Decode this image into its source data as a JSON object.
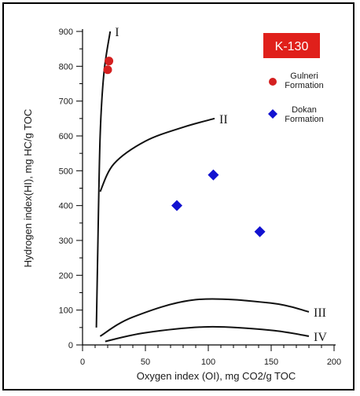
{
  "chart_data": {
    "type": "scatter",
    "title": "",
    "badge": {
      "label": "K-130",
      "color": "#e0201b"
    },
    "xlabel": "Oxygen index (OI), mg CO2/g TOC",
    "ylabel": "Hydrogen index(HI), mg HC/g TOC",
    "xlim": [
      0,
      200
    ],
    "ylim": [
      0,
      900
    ],
    "x_ticks": [
      0,
      50,
      100,
      150,
      200
    ],
    "y_ticks": [
      0,
      100,
      200,
      300,
      400,
      500,
      600,
      700,
      800,
      900
    ],
    "grid": false,
    "legend_position": "top-right",
    "series": [
      {
        "name": "Gulneri Formation",
        "name_lines": [
          "Gulneri",
          "Formation"
        ],
        "marker": "circle",
        "color": "#d42020",
        "points": [
          [
            21,
            815
          ],
          [
            20,
            790
          ]
        ]
      },
      {
        "name": "Dokan Formation",
        "name_lines": [
          "Dokan",
          "Formation"
        ],
        "marker": "diamond",
        "color": "#1212d0",
        "points": [
          [
            104,
            488
          ],
          [
            75,
            400
          ],
          [
            141,
            325
          ]
        ]
      }
    ],
    "kerogen_curves": [
      {
        "label": "I",
        "points": [
          [
            11,
            50
          ],
          [
            12,
            250
          ],
          [
            14,
            600
          ],
          [
            17,
            780
          ],
          [
            22,
            900
          ]
        ]
      },
      {
        "label": "II",
        "points": [
          [
            14,
            440
          ],
          [
            25,
            520
          ],
          [
            50,
            585
          ],
          [
            80,
            625
          ],
          [
            105,
            650
          ]
        ]
      },
      {
        "label": "III",
        "points": [
          [
            14,
            25
          ],
          [
            40,
            80
          ],
          [
            90,
            130
          ],
          [
            150,
            120
          ],
          [
            180,
            95
          ]
        ]
      },
      {
        "label": "IV",
        "points": [
          [
            18,
            10
          ],
          [
            50,
            35
          ],
          [
            100,
            52
          ],
          [
            150,
            42
          ],
          [
            180,
            25
          ]
        ]
      }
    ]
  }
}
